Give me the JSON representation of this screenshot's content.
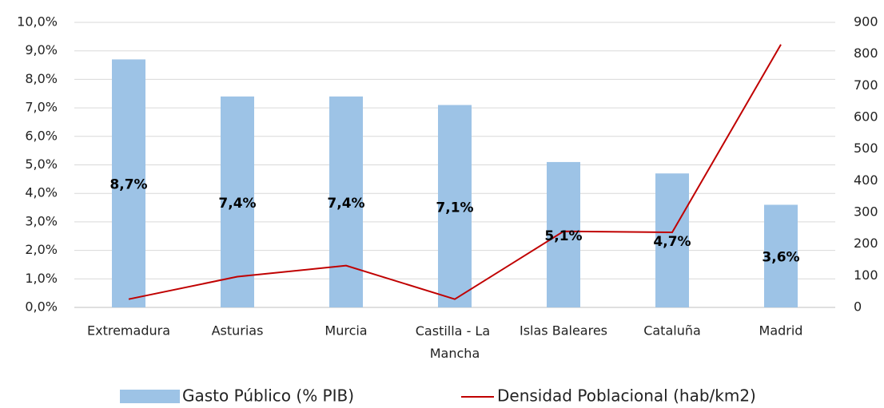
{
  "chart_data": {
    "type": "bar_line",
    "categories": [
      "Extremadura",
      "Asturias",
      "Murcia",
      "Castilla - La Mancha",
      "Islas Baleares",
      "Cataluña",
      "Madrid"
    ],
    "series": [
      {
        "name": "Gasto Público (% PIB)",
        "color": "#9dc3e6",
        "values": [
          8.7,
          7.4,
          7.4,
          7.1,
          5.1,
          4.7,
          3.6
        ],
        "value_labels": [
          "8,7%",
          "7,4%",
          "7,4%",
          "7,1%",
          "5,1%",
          "4,7%",
          "3,6%"
        ]
      },
      {
        "name": "Densidad Poblacional (hab/km2)",
        "color": "#c00000",
        "axis": "y2",
        "values": [
          26,
          97,
          132,
          26,
          240,
          237,
          830
        ]
      }
    ],
    "ylim": [
      0,
      10
    ],
    "yticks": [
      {
        "value": 0,
        "label": "0,0%"
      },
      {
        "value": 1,
        "label": "1,0%"
      },
      {
        "value": 2,
        "label": "2,0%"
      },
      {
        "value": 3,
        "label": "3,0%"
      },
      {
        "value": 4,
        "label": "4,0%"
      },
      {
        "value": 5,
        "label": "5,0%"
      },
      {
        "value": 6,
        "label": "6,0%"
      },
      {
        "value": 7,
        "label": "7,0%"
      },
      {
        "value": 8,
        "label": "8,0%"
      },
      {
        "value": 9,
        "label": "9,0%"
      },
      {
        "value": 10,
        "label": "10,0%"
      }
    ],
    "y2lim": [
      0,
      900
    ],
    "y2ticks": [
      0,
      100,
      200,
      300,
      400,
      500,
      600,
      700,
      800,
      900
    ],
    "grid": true
  }
}
